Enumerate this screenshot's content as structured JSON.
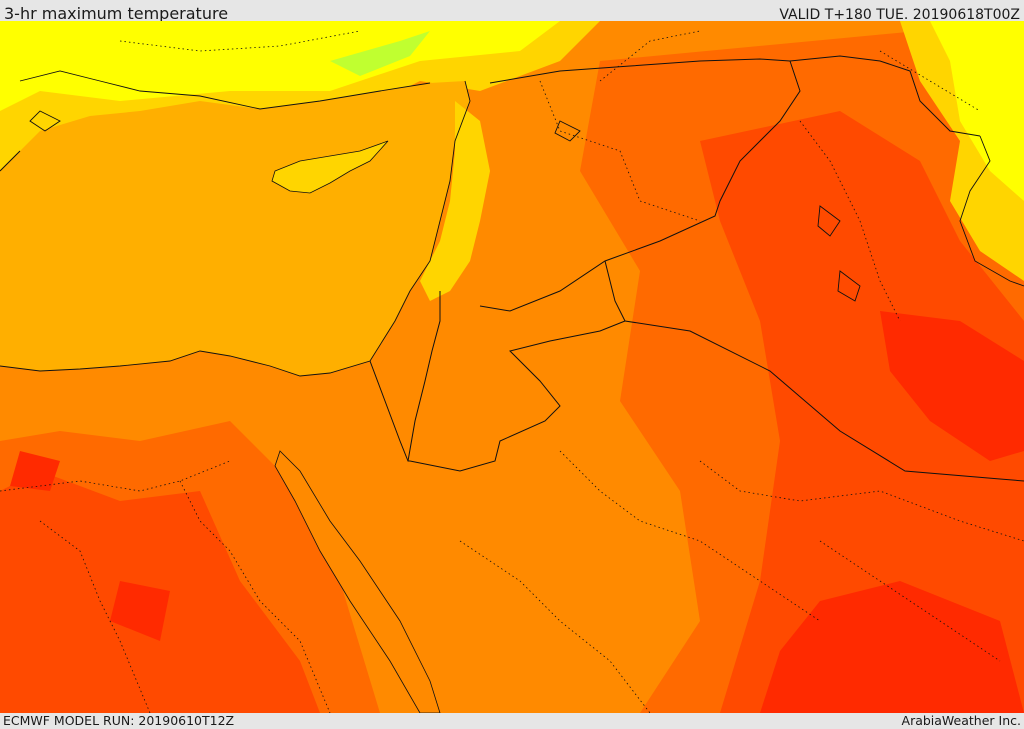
{
  "header": {
    "title": "3-hr maximum temperature",
    "valid": "VALID T+180 TUE. 20190618T00Z"
  },
  "footer": {
    "model_run": "ECMWF MODEL RUN: 20190610T12Z",
    "credit": "ArabiaWeather Inc."
  },
  "colors": {
    "sea": "#ffaf00",
    "cooler_yellow": "#ffd500",
    "cool_yellow": "#ffff00",
    "coolest_green": "#c0ff30",
    "warm": "#ff8a00",
    "hot": "#ff6a00",
    "hotter": "#ff4a00",
    "hottest": "#ff2a00",
    "borders": "#111111"
  }
}
